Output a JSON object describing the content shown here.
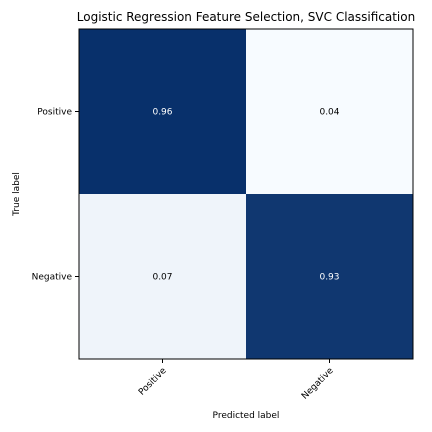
{
  "chart_data": {
    "type": "heatmap",
    "title": "Logistic Regression Feature Selection, SVC Classification",
    "xlabel": "Predicted label",
    "ylabel": "True label",
    "x_categories": [
      "Positive",
      "Negative"
    ],
    "y_categories": [
      "Positive",
      "Negative"
    ],
    "values": [
      [
        0.96,
        0.04
      ],
      [
        0.07,
        0.93
      ]
    ],
    "value_labels": [
      [
        "0.96",
        "0.04"
      ],
      [
        "0.07",
        "0.93"
      ]
    ],
    "colormap": "Blues",
    "color_low": "#f7fbff",
    "color_high": "#08306b",
    "value_range": [
      0.04,
      0.96
    ],
    "colorbar": false,
    "grid": false
  }
}
